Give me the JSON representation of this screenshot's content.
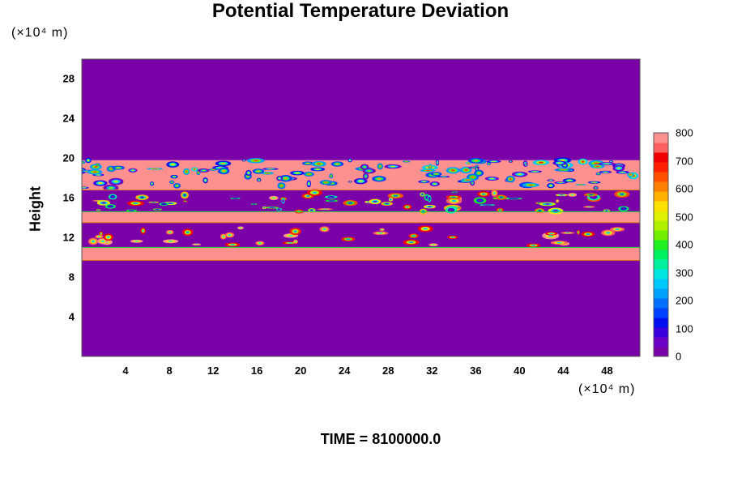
{
  "chart_data": {
    "type": "heatmap",
    "title": "Potential Temperature Deviation",
    "ylabel": "Height",
    "y_unit": "(×10⁴ m)",
    "x_unit": "(×10⁴ m)",
    "xlim": [
      0,
      51
    ],
    "ylim": [
      0,
      30
    ],
    "x_ticks": [
      4,
      8,
      12,
      16,
      20,
      24,
      28,
      32,
      36,
      40,
      44,
      48
    ],
    "y_ticks": [
      4,
      8,
      12,
      16,
      20,
      24,
      28
    ],
    "colorbar": {
      "min": 0,
      "max": 800,
      "tick_labels": [
        0,
        100,
        200,
        300,
        400,
        500,
        600,
        700,
        800
      ],
      "colors": [
        "#7a00a8",
        "#6a00c8",
        "#3a00e0",
        "#0010f0",
        "#0040ff",
        "#0070ff",
        "#00a0ff",
        "#00c8ff",
        "#00e8e0",
        "#00f0a0",
        "#00f060",
        "#20f020",
        "#70f000",
        "#b0f000",
        "#e0f000",
        "#ffe000",
        "#ffb000",
        "#ff8000",
        "#ff5000",
        "#ff2000",
        "#f00000",
        "#ff6060",
        "#ff9090"
      ]
    },
    "layers": [
      {
        "y0": 0,
        "y1": 9.7,
        "level": 0
      },
      {
        "y0": 9.7,
        "y1": 11.0,
        "level": 800
      },
      {
        "y0": 11.0,
        "y1": 13.5,
        "level": 0
      },
      {
        "y0": 13.5,
        "y1": 14.6,
        "level": 800
      },
      {
        "y0": 14.6,
        "y1": 16.8,
        "level": 0
      },
      {
        "y0": 16.8,
        "y1": 19.8,
        "level": 800
      },
      {
        "y0": 19.8,
        "y1": 30,
        "level": 0
      }
    ],
    "footer": "TIME = 8100000.0"
  }
}
